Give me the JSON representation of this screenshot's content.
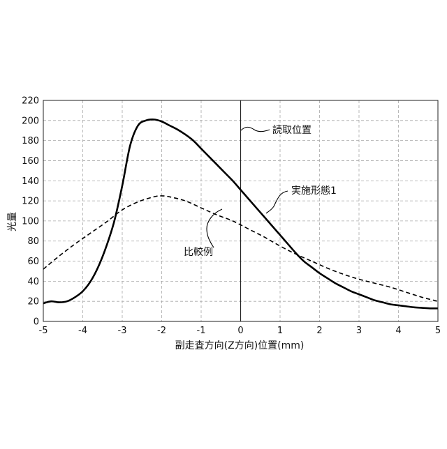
{
  "chart_data": {
    "type": "line",
    "title": "",
    "xlabel": "副走査方向(Z方向)位置(mm)",
    "ylabel": "光量",
    "xlim": [
      -5,
      5
    ],
    "ylim": [
      0,
      220
    ],
    "xticks": [
      -5,
      -4,
      -3,
      -2,
      -1,
      0,
      1,
      2,
      3,
      4,
      5
    ],
    "yticks": [
      0,
      20,
      40,
      60,
      80,
      100,
      120,
      140,
      160,
      180,
      200,
      220
    ],
    "xtick_labels": [
      "-5",
      "-4",
      "-3",
      "-2",
      "-1",
      "0",
      "1",
      "2",
      "3",
      "4",
      "5"
    ],
    "ytick_labels": [
      "0",
      "20",
      "40",
      "60",
      "80",
      "100",
      "120",
      "140",
      "160",
      "180",
      "200",
      "220"
    ],
    "grid": true,
    "series": [
      {
        "name": "実施形態1",
        "style": "solid",
        "x": [
          -5.0,
          -4.8,
          -4.6,
          -4.4,
          -4.2,
          -4.0,
          -3.8,
          -3.6,
          -3.4,
          -3.2,
          -3.0,
          -2.8,
          -2.6,
          -2.4,
          -2.2,
          -2.0,
          -1.8,
          -1.6,
          -1.4,
          -1.2,
          -1.0,
          -0.8,
          -0.6,
          -0.4,
          -0.2,
          0.0,
          0.2,
          0.4,
          0.6,
          0.8,
          1.0,
          1.2,
          1.4,
          1.6,
          1.8,
          2.0,
          2.2,
          2.4,
          2.6,
          2.8,
          3.0,
          3.2,
          3.4,
          3.6,
          3.8,
          4.0,
          4.2,
          4.4,
          4.6,
          4.8,
          5.0
        ],
        "y": [
          18,
          20,
          19,
          20,
          24,
          30,
          40,
          55,
          75,
          100,
          135,
          175,
          195,
          200,
          201,
          199,
          195,
          191,
          186,
          180,
          172,
          164,
          156,
          148,
          140,
          131,
          122,
          113,
          104,
          95,
          86,
          77,
          68,
          60,
          54,
          48,
          43,
          38,
          34,
          30,
          27,
          24,
          21,
          19,
          17,
          16,
          15,
          14,
          13.5,
          13,
          13
        ]
      },
      {
        "name": "比較例",
        "style": "dashed",
        "x": [
          -5.0,
          -4.6,
          -4.2,
          -3.8,
          -3.4,
          -3.0,
          -2.6,
          -2.2,
          -2.0,
          -1.8,
          -1.4,
          -1.0,
          -0.6,
          -0.2,
          0.2,
          0.6,
          1.0,
          1.4,
          1.8,
          2.2,
          2.6,
          3.0,
          3.4,
          3.8,
          4.2,
          4.6,
          5.0
        ],
        "y": [
          52,
          65,
          77,
          88,
          99,
          111,
          119,
          124,
          125,
          124,
          120,
          113,
          106,
          100,
          92,
          84,
          75,
          67,
          60,
          53,
          47,
          42,
          38,
          34,
          29,
          24,
          20
        ]
      }
    ],
    "reference_line": {
      "x": 0,
      "label": "読取位置"
    },
    "annotations": [
      "読取位置",
      "実施形態1",
      "比較例"
    ]
  }
}
